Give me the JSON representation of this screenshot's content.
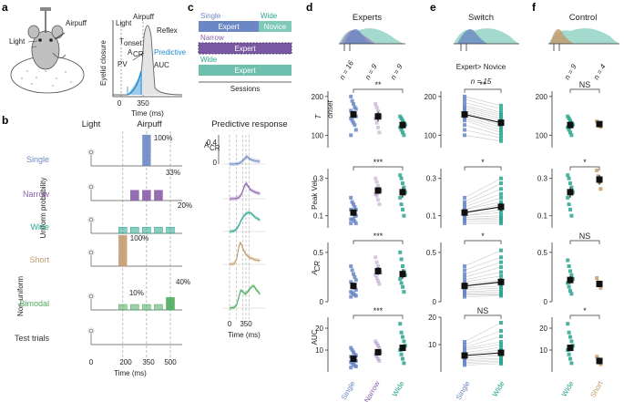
{
  "panel_letters": [
    "a",
    "b",
    "c",
    "d",
    "e",
    "f"
  ],
  "panel_a": {
    "light_label": "Light",
    "airpuff_label": "Airpuff",
    "ylabel": "Eyelid closure",
    "xlabel": "Time (ms)",
    "xticks": [
      "0",
      "350"
    ],
    "annotations": [
      "Light",
      "Airpuff",
      "Reflex",
      "T",
      "onset",
      "PV",
      "A",
      "CR",
      "Predictive",
      "AUC"
    ]
  },
  "panel_b": {
    "col_light": "Light",
    "col_airpuff": "Airpuff",
    "col_predictive": "Predictive response",
    "group_uniform": "Uniform probability",
    "group_nonuniform": "Non-uniform",
    "xlabel": "Time (ms)",
    "xticks": [
      "0",
      "200",
      "350",
      "500"
    ],
    "resp_ylabel": "A",
    "resp_ylabel_sub": "CR",
    "resp_ytick_top": "0.4",
    "resp_ytick_bottom": "0",
    "resp_xlabel": "Time (ms)",
    "resp_xticks": [
      "0",
      "350"
    ]
  },
  "conditions": [
    {
      "name": "Single",
      "color": "#6b88c4",
      "pct": "100%"
    },
    {
      "name": "Narrow",
      "color": "#8a5ea8",
      "pct": "33%"
    },
    {
      "name": "Wide",
      "color": "#2aa58f",
      "pct": "20%"
    },
    {
      "name": "Short",
      "color": "#c49a6c",
      "pct": "100%"
    },
    {
      "name": "Bimodal",
      "color": "#4caa5c",
      "pct": "10%",
      "pct2": "40%"
    },
    {
      "name": "Test trials",
      "color": "#333333",
      "pct": ""
    }
  ],
  "panel_c": {
    "single": "Single",
    "wide_top": "Wide",
    "expert1": "Expert",
    "novice": "Novice",
    "narrow": "Narrow",
    "expert2": "Expert",
    "wide": "Wide",
    "expert3": "Expert",
    "xlabel": "Sessions"
  },
  "panel_d": {
    "title": "Experts",
    "n_labels": [
      "n = 16",
      "n = 9",
      "n = 9"
    ],
    "xcats": [
      "Single",
      "Narrow",
      "Wide"
    ]
  },
  "panel_e": {
    "title": "Switch",
    "subtitle": "Expert> Novice",
    "n_label": "n = 15",
    "xcats": [
      "Single",
      "Wide"
    ]
  },
  "panel_f": {
    "title": "Control",
    "n_labels": [
      "n = 9",
      "n = 4"
    ],
    "xcats": [
      "Wide",
      "Short"
    ]
  },
  "row_labels": [
    "T",
    "onset",
    "Peak Vel.",
    "A",
    "CR",
    "AUC"
  ],
  "chart_data": [
    {
      "type": "bar",
      "title": "Airpuff",
      "xlabel": "Time (ms)",
      "xlim": [
        0,
        560
      ],
      "series": [
        {
          "name": "Single",
          "x": [
            350
          ],
          "values": [
            100
          ]
        },
        {
          "name": "Narrow",
          "x": [
            275,
            350,
            425
          ],
          "values": [
            33,
            33,
            33
          ]
        },
        {
          "name": "Wide",
          "x": [
            200,
            275,
            350,
            425,
            500
          ],
          "values": [
            20,
            20,
            20,
            20,
            20
          ]
        },
        {
          "name": "Short",
          "x": [
            200
          ],
          "values": [
            100
          ]
        },
        {
          "name": "Bimodal",
          "x": [
            200,
            275,
            350,
            425,
            500
          ],
          "values": [
            10,
            10,
            10,
            10,
            40
          ]
        }
      ]
    },
    {
      "type": "line",
      "title": "Predictive response",
      "xlabel": "Time (ms)",
      "ylabel": "A_CR",
      "xlim": [
        -100,
        650
      ],
      "ylim": [
        0,
        0.4
      ],
      "series": [
        {
          "name": "Single",
          "x": [
            0,
            100,
            200,
            280,
            330,
            360,
            400,
            450,
            550,
            650
          ],
          "values": [
            0,
            0,
            0.01,
            0.05,
            0.09,
            0.12,
            0.1,
            0.07,
            0.05,
            0.04
          ]
        },
        {
          "name": "Narrow",
          "x": [
            0,
            100,
            200,
            260,
            300,
            330,
            360,
            400,
            450,
            550,
            650
          ],
          "values": [
            0,
            0,
            0.02,
            0.08,
            0.16,
            0.22,
            0.24,
            0.19,
            0.14,
            0.1,
            0.08
          ]
        },
        {
          "name": "Wide",
          "x": [
            0,
            100,
            150,
            200,
            250,
            300,
            350,
            400,
            450,
            500,
            550,
            650
          ],
          "values": [
            0,
            0.01,
            0.04,
            0.1,
            0.18,
            0.24,
            0.28,
            0.3,
            0.29,
            0.26,
            0.22,
            0.18
          ]
        },
        {
          "name": "Short",
          "x": [
            0,
            100,
            150,
            200,
            230,
            260,
            300,
            350,
            400,
            450,
            550,
            650
          ],
          "values": [
            0,
            0.01,
            0.08,
            0.28,
            0.34,
            0.3,
            0.22,
            0.16,
            0.12,
            0.1,
            0.07,
            0.06
          ]
        },
        {
          "name": "Bimodal",
          "x": [
            0,
            100,
            150,
            200,
            240,
            280,
            330,
            380,
            430,
            480,
            520,
            560,
            650
          ],
          "values": [
            0,
            0.01,
            0.05,
            0.18,
            0.28,
            0.26,
            0.22,
            0.25,
            0.3,
            0.34,
            0.35,
            0.3,
            0.22
          ]
        }
      ]
    },
    {
      "type": "scatter",
      "title": "Experts",
      "categories": [
        "Single",
        "Narrow",
        "Wide"
      ],
      "n": [
        16,
        9,
        9
      ],
      "rows": [
        {
          "name": "T_onset",
          "scale": "log",
          "ylim": [
            80,
            220
          ],
          "yticks": [
            100,
            200
          ],
          "mean": [
            145,
            140,
            120
          ],
          "sem": [
            10,
            12,
            8
          ],
          "points": [
            [
              200,
              185,
              175,
              165,
              160,
              155,
              150,
              148,
              145,
              140,
              135,
              130,
              125,
              120,
              110,
              100
            ],
            [
              175,
              165,
              155,
              145,
              140,
              135,
              125,
              115,
              105
            ],
            [
              140,
              135,
              130,
              125,
              120,
              115,
              110,
              105,
              100
            ]
          ],
          "significance": [
            "**"
          ]
        },
        {
          "name": "Peak Vel.",
          "scale": "log",
          "ylim": [
            0.07,
            0.4
          ],
          "yticks": [
            0.1,
            0.3
          ],
          "mean": [
            0.11,
            0.21,
            0.2
          ],
          "sem": [
            0.01,
            0.02,
            0.03
          ],
          "points": [
            [
              0.17,
              0.15,
              0.14,
              0.13,
              0.12,
              0.12,
              0.11,
              0.11,
              0.1,
              0.1,
              0.09,
              0.09,
              0.09,
              0.085,
              0.08,
              0.08
            ],
            [
              0.3,
              0.27,
              0.24,
              0.22,
              0.21,
              0.19,
              0.18,
              0.16,
              0.14
            ],
            [
              0.33,
              0.3,
              0.26,
              0.23,
              0.2,
              0.17,
              0.14,
              0.12,
              0.1
            ]
          ],
          "significance": [
            "***"
          ]
        },
        {
          "name": "A_CR",
          "scale": "linear",
          "ylim": [
            0,
            0.6
          ],
          "yticks": [
            0,
            0.5
          ],
          "mean": [
            0.16,
            0.31,
            0.28
          ],
          "sem": [
            0.03,
            0.04,
            0.05
          ],
          "points": [
            [
              0.36,
              0.32,
              0.28,
              0.25,
              0.22,
              0.2,
              0.18,
              0.16,
              0.14,
              0.12,
              0.1,
              0.09,
              0.08,
              0.07,
              0.06,
              0.05
            ],
            [
              0.45,
              0.4,
              0.36,
              0.33,
              0.3,
              0.27,
              0.24,
              0.21,
              0.18
            ],
            [
              0.5,
              0.43,
              0.36,
              0.31,
              0.27,
              0.23,
              0.19,
              0.15,
              0.1
            ]
          ],
          "significance": [
            "***"
          ]
        },
        {
          "name": "AUC",
          "scale": "linear",
          "ylim": [
            0,
            25
          ],
          "yticks": [
            10,
            20
          ],
          "mean": [
            6,
            9,
            11
          ],
          "sem": [
            0.8,
            1.2,
            1.5
          ],
          "points": [
            [
              11,
              10,
              9,
              8,
              7.5,
              7,
              6.5,
              6,
              5.5,
              5,
              4.5,
              4,
              3.5,
              3,
              2.5,
              2
            ],
            [
              14,
              13,
              12,
              11,
              9,
              8,
              7,
              6,
              5
            ],
            [
              22,
              18,
              16,
              14,
              12,
              10,
              8,
              6,
              4
            ]
          ],
          "significance": [
            "***"
          ]
        }
      ]
    },
    {
      "type": "scatter",
      "title": "Switch",
      "categories": [
        "Single",
        "Wide"
      ],
      "n": [
        15
      ],
      "rows": [
        {
          "name": "T_onset",
          "scale": "log",
          "ylim": [
            80,
            220
          ],
          "yticks": [
            100,
            200
          ],
          "mean": [
            145,
            125
          ],
          "sem": [
            9,
            7
          ],
          "points": [
            [
              200,
              190,
              180,
              170,
              165,
              160,
              155,
              150,
              145,
              140,
              135,
              130,
              120,
              110,
              100
            ],
            [
              170,
              160,
              150,
              145,
              140,
              135,
              130,
              125,
              120,
              115,
              110,
              105,
              100,
              95,
              90
            ]
          ],
          "significance": [
            "**"
          ]
        },
        {
          "name": "Peak Vel.",
          "scale": "log",
          "ylim": [
            0.07,
            0.4
          ],
          "yticks": [
            0.1,
            0.3
          ],
          "mean": [
            0.11,
            0.13
          ],
          "sem": [
            0.01,
            0.015
          ],
          "points": [
            [
              0.17,
              0.15,
              0.14,
              0.13,
              0.12,
              0.12,
              0.11,
              0.11,
              0.1,
              0.1,
              0.095,
              0.09,
              0.09,
              0.085,
              0.08
            ],
            [
              0.3,
              0.26,
              0.22,
              0.19,
              0.17,
              0.15,
              0.14,
              0.13,
              0.12,
              0.11,
              0.1,
              0.095,
              0.09,
              0.085,
              0.08
            ]
          ],
          "significance": [
            "*"
          ]
        },
        {
          "name": "A_CR",
          "scale": "linear",
          "ylim": [
            0,
            0.6
          ],
          "yticks": [
            0,
            0.5
          ],
          "mean": [
            0.16,
            0.2
          ],
          "sem": [
            0.03,
            0.04
          ],
          "points": [
            [
              0.36,
              0.32,
              0.28,
              0.25,
              0.22,
              0.2,
              0.18,
              0.16,
              0.14,
              0.12,
              0.1,
              0.09,
              0.08,
              0.07,
              0.05
            ],
            [
              0.52,
              0.45,
              0.4,
              0.35,
              0.3,
              0.26,
              0.22,
              0.19,
              0.16,
              0.14,
              0.12,
              0.1,
              0.08,
              0.07,
              0.06
            ]
          ],
          "significance": [
            "*"
          ]
        },
        {
          "name": "AUC",
          "scale": "linear",
          "ylim": [
            0,
            20
          ],
          "yticks": [
            10,
            20
          ],
          "mean": [
            6,
            7
          ],
          "sem": [
            0.8,
            1.2
          ],
          "points": [
            [
              11,
              10,
              9,
              8.5,
              8,
              7,
              6.5,
              6,
              5.5,
              5,
              4.5,
              4,
              3.5,
              3,
              2.5
            ],
            [
              18,
              15,
              13,
              11,
              10,
              9,
              8,
              7,
              6.5,
              6,
              5,
              4.5,
              4,
              3.5,
              3
            ]
          ],
          "significance": [
            "NS"
          ]
        }
      ]
    },
    {
      "type": "scatter",
      "title": "Control",
      "categories": [
        "Wide",
        "Short"
      ],
      "n": [
        9,
        4
      ],
      "rows": [
        {
          "name": "T_onset",
          "scale": "log",
          "ylim": [
            80,
            220
          ],
          "yticks": [
            100,
            200
          ],
          "mean": [
            120,
            122
          ],
          "sem": [
            8,
            5
          ],
          "points": [
            [
              140,
              135,
              130,
              125,
              120,
              115,
              110,
              105,
              100
            ],
            [
              128,
              124,
              120,
              116
            ]
          ],
          "significance": [
            "NS"
          ]
        },
        {
          "name": "Peak Vel.",
          "scale": "log",
          "ylim": [
            0.07,
            0.4
          ],
          "yticks": [
            0.1,
            0.3
          ],
          "mean": [
            0.2,
            0.29
          ],
          "sem": [
            0.03,
            0.04
          ],
          "points": [
            [
              0.33,
              0.3,
              0.26,
              0.23,
              0.2,
              0.17,
              0.14,
              0.12,
              0.1
            ],
            [
              0.38,
              0.32,
              0.27,
              0.22
            ]
          ],
          "significance": [
            "*"
          ]
        },
        {
          "name": "A_CR",
          "scale": "linear",
          "ylim": [
            0,
            0.6
          ],
          "yticks": [
            0,
            0.5
          ],
          "mean": [
            0.22,
            0.18
          ],
          "sem": [
            0.04,
            0.03
          ],
          "points": [
            [
              0.42,
              0.36,
              0.31,
              0.27,
              0.23,
              0.19,
              0.15,
              0.11,
              0.08
            ],
            [
              0.24,
              0.2,
              0.17,
              0.14
            ]
          ],
          "significance": [
            "NS"
          ]
        },
        {
          "name": "AUC",
          "scale": "linear",
          "ylim": [
            0,
            25
          ],
          "yticks": [
            10,
            20
          ],
          "mean": [
            11,
            5
          ],
          "sem": [
            1.5,
            0.6
          ],
          "points": [
            [
              22,
              18,
              16,
              14,
              12,
              10,
              8,
              6,
              4
            ],
            [
              7,
              6,
              4.5,
              3.5
            ]
          ],
          "significance": [
            "*"
          ]
        }
      ]
    }
  ]
}
